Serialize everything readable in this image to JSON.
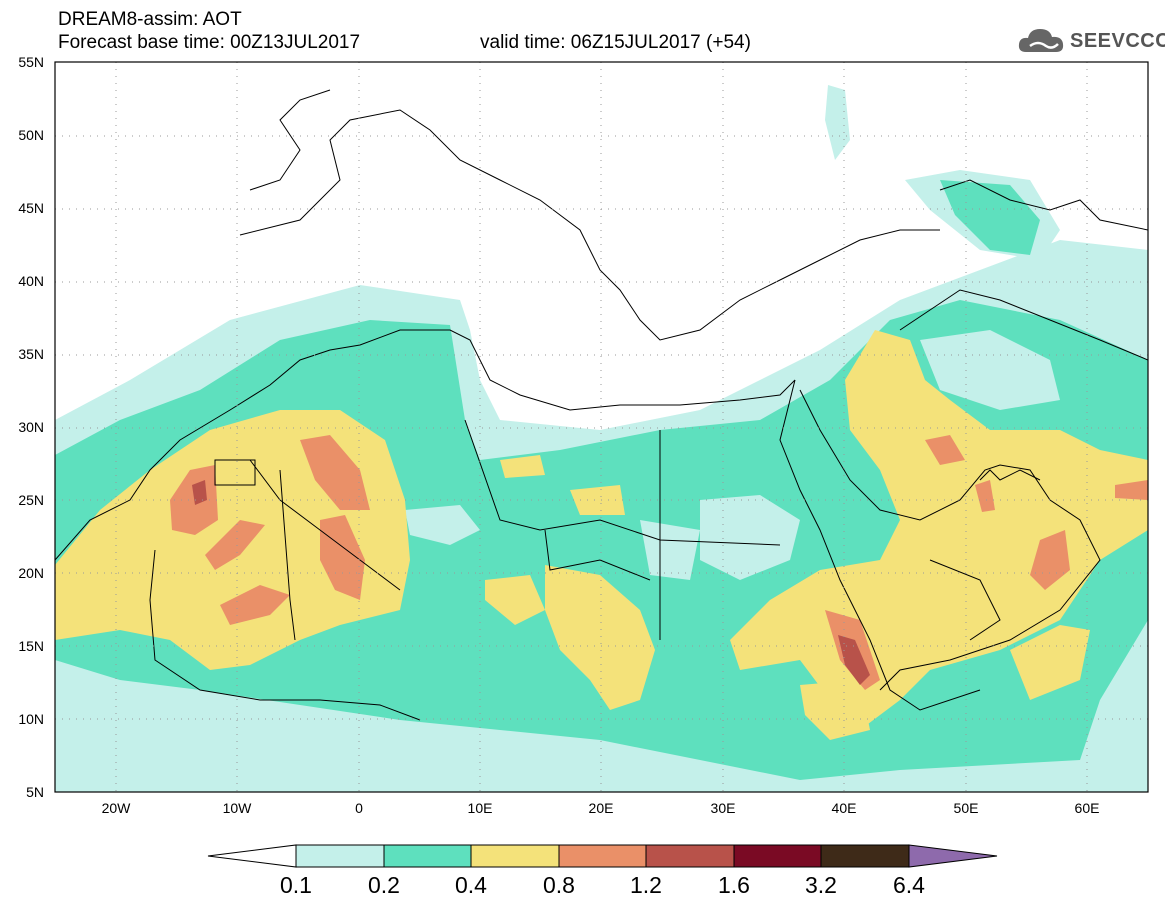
{
  "header": {
    "title_line1": "DREAM8-assim: AOT",
    "title_line2_left": "Forecast base time: 00Z13JUL2017",
    "title_line2_right": "valid time: 06Z15JUL2017 (+54)",
    "logo_text": "SEEVCCC",
    "logo_icon": "cloud-icon"
  },
  "map": {
    "lat_labels": [
      "55N",
      "50N",
      "45N",
      "40N",
      "35N",
      "30N",
      "25N",
      "20N",
      "15N",
      "10N",
      "5N"
    ],
    "lon_labels": [
      "20W",
      "10W",
      "0",
      "10E",
      "20E",
      "30E",
      "40E",
      "50E",
      "60E"
    ],
    "lat_range": [
      5,
      55
    ],
    "lon_range": [
      -25,
      65
    ],
    "gridlines": "dotted"
  },
  "colorbar": {
    "labels": [
      "0.1",
      "0.2",
      "0.4",
      "0.8",
      "1.2",
      "1.6",
      "3.2",
      "6.4"
    ],
    "colors": [
      "#c4f0ea",
      "#5ee0be",
      "#f4e27a",
      "#ea9068",
      "#b8524a",
      "#7a0a24",
      "#3e2a18",
      "#8e6aac"
    ],
    "under_color": "#ffffff"
  }
}
